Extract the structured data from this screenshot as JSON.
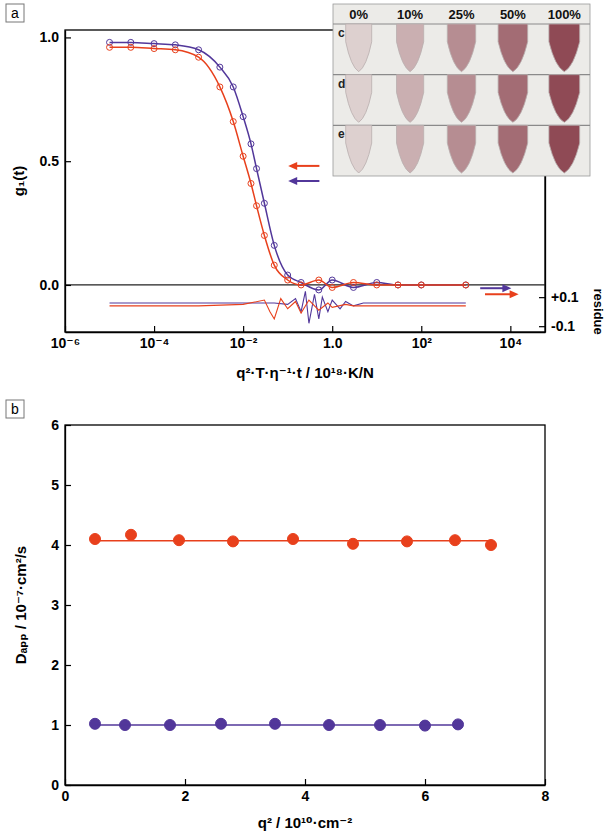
{
  "chart_data": [
    {
      "type": "line",
      "panel_label": "a",
      "x_label": "q²·T·η⁻¹·t / 10¹⁸·K/N",
      "y_label": "g₁(t)",
      "y2_label": "residue",
      "log": "x",
      "xlim": [
        1e-06,
        60000
      ],
      "xticks": [
        {
          "value": 1e-06,
          "label": "10⁻⁶"
        },
        {
          "value": 0.0001,
          "label": "10⁻⁴"
        },
        {
          "value": 0.01,
          "label": "10⁻²"
        },
        {
          "value": 1,
          "label": "1.0"
        },
        {
          "value": 100,
          "label": "10²"
        },
        {
          "value": 10000,
          "label": "10⁴"
        }
      ],
      "ylim": [
        -0.19,
        1.03
      ],
      "yticks": [
        {
          "value": 0,
          "label": "0.0"
        },
        {
          "value": 0.5,
          "label": "0.5"
        },
        {
          "value": 1,
          "label": "1.0"
        }
      ],
      "y2lim": [
        -0.14,
        1.94
      ],
      "y2ticks": [
        {
          "value": 0.1,
          "label": "+0.1"
        },
        -0.1
      ],
      "hlines": [
        0
      ],
      "series": [
        {
          "color": "#52379a",
          "marker": "open-circle",
          "line_style": "solid",
          "x": [
            1e-05,
            3e-05,
            0.0001,
            0.0003,
            0.001,
            0.003,
            0.006,
            0.01,
            0.015,
            0.02,
            0.03,
            0.05,
            0.1,
            0.2,
            0.5,
            1,
            3,
            10,
            30,
            100,
            1000
          ],
          "values": [
            0.98,
            0.98,
            0.975,
            0.97,
            0.95,
            0.88,
            0.8,
            0.68,
            0.57,
            0.47,
            0.33,
            0.16,
            0.04,
            0.01,
            -0.02,
            0.02,
            -0.01,
            0.01,
            0,
            0,
            0
          ]
        },
        {
          "color": "#e8401c",
          "marker": "open-circle",
          "line_style": "solid",
          "x": [
            1e-05,
            3e-05,
            0.0001,
            0.0003,
            0.001,
            0.003,
            0.006,
            0.01,
            0.015,
            0.02,
            0.03,
            0.05,
            0.1,
            0.2,
            0.5,
            1,
            3,
            10,
            30,
            100,
            1000
          ],
          "values": [
            0.96,
            0.96,
            0.955,
            0.95,
            0.92,
            0.8,
            0.66,
            0.52,
            0.41,
            0.32,
            0.2,
            0.08,
            0.02,
            0,
            0.02,
            -0.01,
            0.01,
            0,
            0,
            0,
            0
          ]
        },
        {
          "color": "#52379a",
          "type": "line",
          "axis": "y2",
          "marker": "none",
          "line_style": "solid",
          "x": [
            1e-05,
            0.0001,
            0.001,
            0.01,
            0.05,
            0.1,
            0.15,
            0.2,
            0.25,
            0.3,
            0.4,
            0.5,
            0.6,
            0.8,
            1,
            1.5,
            2,
            3,
            5,
            10,
            100,
            1000
          ],
          "values": [
            0.06,
            0.06,
            0.06,
            0.06,
            0.06,
            0.05,
            0.09,
            0,
            0.14,
            -0.08,
            0.12,
            -0.05,
            0.1,
            0,
            0.08,
            0.02,
            0.07,
            0.04,
            0.06,
            0.06,
            0.06,
            0.06
          ]
        },
        {
          "color": "#e8401c",
          "type": "line",
          "axis": "y2",
          "marker": "none",
          "line_style": "solid",
          "x": [
            1e-05,
            0.0001,
            0.001,
            0.01,
            0.03,
            0.04,
            0.05,
            0.07,
            0.1,
            0.15,
            0.2,
            0.3,
            0.5,
            0.8,
            1,
            2,
            3,
            5,
            10,
            100,
            1000
          ],
          "values": [
            0.04,
            0.04,
            0.04,
            0.05,
            0.08,
            0,
            -0.05,
            0.09,
            0.02,
            0.07,
            -0.01,
            0.08,
            0.01,
            0.06,
            0.03,
            0.05,
            0.04,
            0.04,
            0.04,
            0.04,
            0.04
          ]
        }
      ],
      "inset": {
        "columns": [
          "0%",
          "10%",
          "25%",
          "50%",
          "100%"
        ],
        "rows": [
          "c",
          "d",
          "e"
        ]
      }
    },
    {
      "type": "scatter",
      "panel_label": "b",
      "x_label": "q² / 10¹⁰·cm⁻²",
      "y_label": "Dₐₚₚ / 10⁻⁷·cm²/s",
      "xlim": [
        0,
        8
      ],
      "xticks": [
        0,
        2,
        4,
        6,
        8
      ],
      "ylim": [
        0,
        6
      ],
      "yticks": [
        0,
        1,
        2,
        3,
        4,
        5,
        6
      ],
      "series": [
        {
          "color": "#e8401c",
          "marker": "circle",
          "x": [
            0.5,
            1.1,
            1.9,
            2.8,
            3.8,
            4.8,
            5.7,
            6.5,
            7.1
          ],
          "values": [
            4.1,
            4.17,
            4.08,
            4.06,
            4.1,
            4.02,
            4.06,
            4.08,
            4.0
          ]
        },
        {
          "color": "#52379a",
          "marker": "circle",
          "x": [
            0.5,
            1.0,
            1.75,
            2.6,
            3.5,
            4.4,
            5.25,
            6.0,
            6.55
          ],
          "values": [
            1.02,
            1.0,
            1.0,
            1.02,
            1.02,
            1.0,
            1.0,
            0.99,
            1.01
          ]
        },
        {
          "color": "#e8401c",
          "type": "line",
          "marker": "none",
          "line_style": "solid",
          "x": [
            0.5,
            7.1
          ],
          "values": [
            4.07,
            4.07
          ]
        },
        {
          "color": "#52379a",
          "type": "line",
          "marker": "none",
          "line_style": "solid",
          "x": [
            0.5,
            6.55
          ],
          "values": [
            1.0,
            1.0
          ]
        }
      ]
    }
  ]
}
